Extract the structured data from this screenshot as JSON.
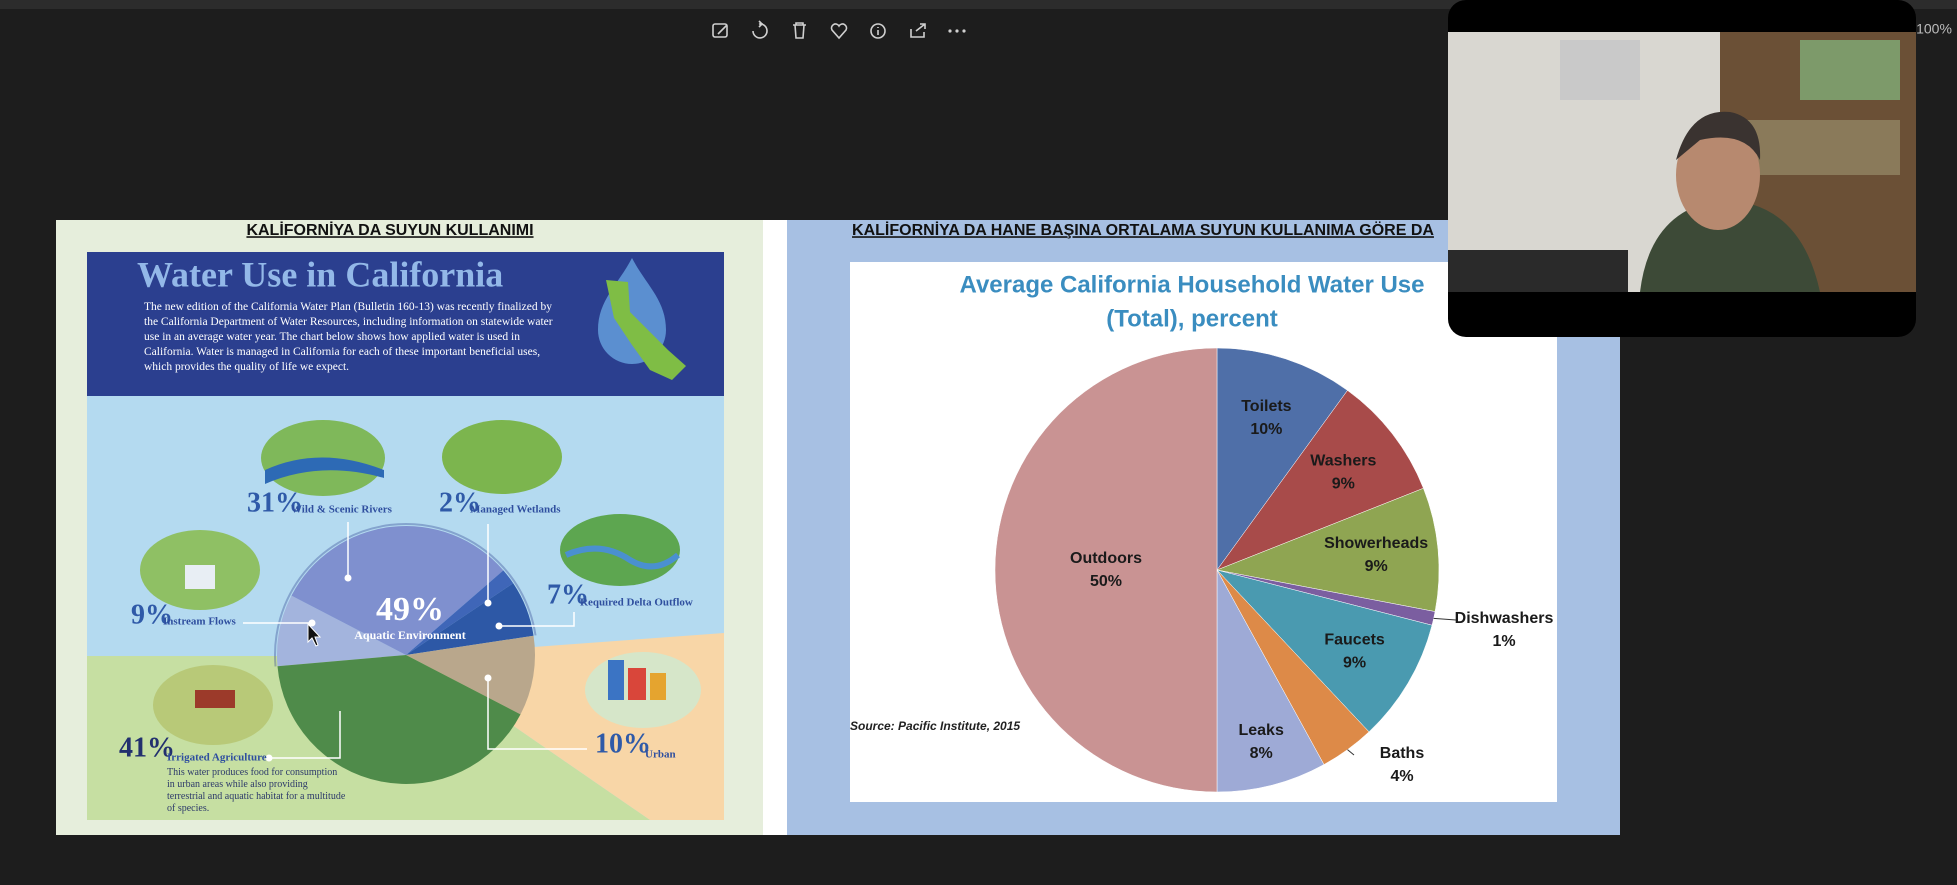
{
  "viewer": {
    "zoom": "100%"
  },
  "left_slide": {
    "heading": "KALİFORNİYA DA SUYUN KULLANIMI",
    "infographic": {
      "title": "Water Use in California",
      "description": "The new edition of the California Water Plan (Bulletin 160-13) was recently finalized by the California Department of Water Resources, including information on statewide water use in an average water year. The chart below shows how applied water is used in California. Water is managed in California for each of these important beneficial uses, which provides the quality of life we expect.",
      "chart": {
        "type": "pie",
        "categories": [
          "Instream Flows",
          "Wild & Scenic Rivers",
          "Managed Wetlands",
          "Required Delta Outflow",
          "Urban",
          "Irrigated Agriculture"
        ],
        "values": [
          9,
          31,
          2,
          7,
          10,
          41
        ],
        "value_labels": [
          "9%",
          "31%",
          "2%",
          "7%",
          "10%",
          "41%"
        ],
        "colors": [
          "#a3b4dd",
          "#7f90cf",
          "#3f66b8",
          "#2d58a6",
          "#b9a78c",
          "#4f8b4a"
        ],
        "group": {
          "label": "Aquatic Environment",
          "value": 49,
          "value_label": "49%"
        },
        "agriculture_note": "This water produces food for consumption in urban areas while also providing terrestrial and aquatic habitat for a multitude of species."
      }
    }
  },
  "right_slide": {
    "heading": "KALİFORNİYA DA HANE BAŞINA ORTALAMA SUYUN KULLANIMA GÖRE DA",
    "chart": {
      "type": "pie",
      "title": [
        "Average California Household Water Use",
        "(Total), percent"
      ],
      "categories": [
        "Toilets",
        "Washers",
        "Showerheads",
        "Dishwashers",
        "Faucets",
        "Baths",
        "Leaks",
        "Outdoors"
      ],
      "values": [
        10,
        9,
        9,
        1,
        9,
        4,
        8,
        50
      ],
      "value_labels": [
        "10%",
        "9%",
        "9%",
        "1%",
        "9%",
        "4%",
        "8%",
        "50%"
      ],
      "colors": [
        "#4f6fa8",
        "#a84b4a",
        "#8fa552",
        "#7b5ea0",
        "#4a9ab0",
        "#dd8a48",
        "#9eaad6",
        "#c99393"
      ],
      "source": "Source: Pacific Institute, 2015"
    }
  }
}
